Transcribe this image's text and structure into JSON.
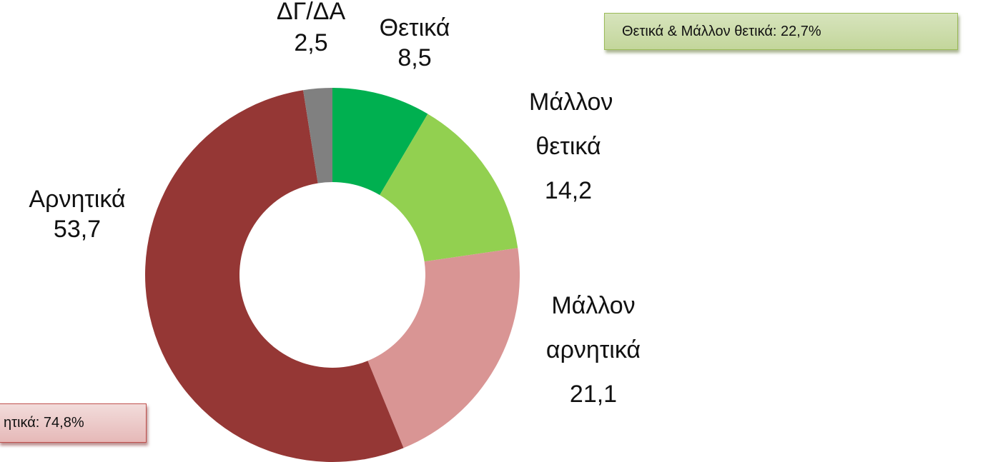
{
  "chart_data": {
    "type": "donut",
    "categories": [
      "Θετικά",
      "Μάλλον θετικά",
      "Μάλλον αρνητικά",
      "Αρνητικά",
      "ΔΓ/ΔΑ"
    ],
    "values": [
      8.5,
      14.2,
      21.1,
      53.7,
      2.5
    ],
    "value_labels": [
      "8,5",
      "14,2",
      "21,1",
      "53,7",
      "2,5"
    ],
    "colors": [
      "#00b050",
      "#92d050",
      "#d99594",
      "#953735",
      "#808080"
    ],
    "annotations": [
      "Θετικά & Μάλλον θετικά: 22,7%",
      "ητικά: 74,8%"
    ]
  }
}
